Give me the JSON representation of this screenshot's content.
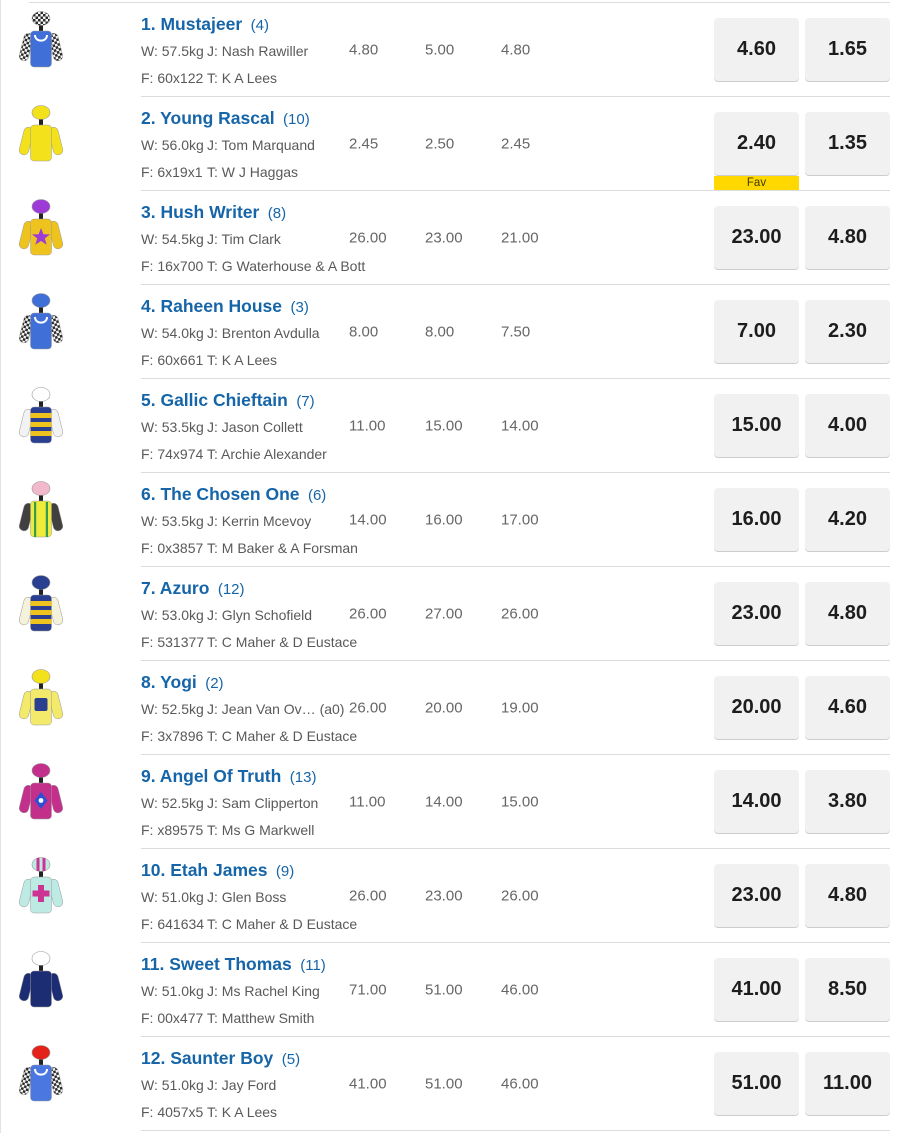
{
  "labels": {
    "fav": "Fav"
  },
  "colors": {
    "link_blue": "#1565a8",
    "detail_gray": "#595959",
    "flucs_gray": "#666666",
    "button_bg": "#f1f1f2",
    "fav_yellow": "#ffd800",
    "separator": "#dcdcdc"
  },
  "runners": [
    {
      "name": "1. Mustajeer",
      "barrier": "(4)",
      "weight": "W: 57.5kg",
      "jockey": "J: Nash Rawiller",
      "form": "F: 60x122",
      "trainer": "T: K A Lees",
      "odds_history": [
        "4.80",
        "5.00",
        "4.80"
      ],
      "win": "4.60",
      "place": "1.65",
      "fav": false,
      "silks": {
        "cap": "#ffffff",
        "cap_style": "checks",
        "body": "#3f6fd7",
        "sleeves": "checks",
        "overlay": "chain",
        "overlay_color": "#ffffff"
      }
    },
    {
      "name": "2. Young Rascal",
      "barrier": "(10)",
      "weight": "W: 56.0kg",
      "jockey": "J: Tom Marquand",
      "form": "F: 6x19x1",
      "trainer": "T: W J Haggas",
      "odds_history": [
        "2.45",
        "2.50",
        "2.45"
      ],
      "win": "2.40",
      "place": "1.35",
      "fav": true,
      "silks": {
        "cap": "#f3e11c",
        "cap_style": "solid",
        "body": "#f3e11c",
        "sleeves": "#f3e11c",
        "overlay": "none",
        "overlay_color": ""
      }
    },
    {
      "name": "3. Hush Writer",
      "barrier": "(8)",
      "weight": "W: 54.5kg",
      "jockey": "J: Tim Clark",
      "form": "F: 16x700",
      "trainer": "T: G Waterhouse & A Bott",
      "odds_history": [
        "26.00",
        "23.00",
        "21.00"
      ],
      "win": "23.00",
      "place": "4.80",
      "fav": false,
      "silks": {
        "cap": "#9d3bd6",
        "cap_style": "solid",
        "body": "#efc31d",
        "sleeves": "#efc31d",
        "overlay": "star",
        "overlay_color": "#9d3bd6"
      }
    },
    {
      "name": "4. Raheen House",
      "barrier": "(3)",
      "weight": "W: 54.0kg",
      "jockey": "J: Brenton Avdulla",
      "form": "F: 60x661",
      "trainer": "T: K A Lees",
      "odds_history": [
        "8.00",
        "8.00",
        "7.50"
      ],
      "win": "7.00",
      "place": "2.30",
      "fav": false,
      "silks": {
        "cap": "#3f6fd7",
        "cap_style": "solid",
        "body": "#3f6fd7",
        "sleeves": "checks",
        "overlay": "chain",
        "overlay_color": "#ffffff"
      }
    },
    {
      "name": "5. Gallic Chieftain",
      "barrier": "(7)",
      "weight": "W: 53.5kg",
      "jockey": "J: Jason Collett",
      "form": "F: 74x974",
      "trainer": "T: Archie Alexander",
      "odds_history": [
        "11.00",
        "15.00",
        "14.00"
      ],
      "win": "15.00",
      "place": "4.00",
      "fav": false,
      "silks": {
        "cap": "#ffffff",
        "cap_style": "solid",
        "body": "#2a3f8f",
        "sleeves": "#f2f2f2",
        "overlay": "hoops",
        "overlay_color": "#efc31d"
      }
    },
    {
      "name": "6. The Chosen One",
      "barrier": "(6)",
      "weight": "W: 53.5kg",
      "jockey": "J: Kerrin Mcevoy",
      "form": "F: 0x3857",
      "trainer": "T: M Baker & A Forsman",
      "odds_history": [
        "14.00",
        "16.00",
        "17.00"
      ],
      "win": "16.00",
      "place": "4.20",
      "fav": false,
      "silks": {
        "cap": "#f2b8cb",
        "cap_style": "solid",
        "body": "#f0ea3a",
        "sleeves": "#404040",
        "overlay": "vstripes",
        "overlay_color": "#2f9e4f"
      }
    },
    {
      "name": "7. Azuro",
      "barrier": "(12)",
      "weight": "W: 53.0kg",
      "jockey": "J: Glyn Schofield",
      "form": "F: 531377",
      "trainer": "T: C Maher & D Eustace",
      "odds_history": [
        "26.00",
        "27.00",
        "26.00"
      ],
      "win": "23.00",
      "place": "4.80",
      "fav": false,
      "silks": {
        "cap": "#2a3f8f",
        "cap_style": "solid",
        "body": "#2a3f8f",
        "sleeves": "#f5f2dc",
        "overlay": "hoops",
        "overlay_color": "#efc31d"
      }
    },
    {
      "name": "8. Yogi",
      "barrier": "(2)",
      "weight": "W: 52.5kg",
      "jockey": "J: Jean Van Ov… (a0)",
      "form": "F: 3x7896",
      "trainer": "T: C Maher & D Eustace",
      "odds_history": [
        "26.00",
        "20.00",
        "19.00"
      ],
      "win": "20.00",
      "place": "4.60",
      "fav": false,
      "silks": {
        "cap": "#f3e11c",
        "cap_style": "solid",
        "body": "#f3e96b",
        "sleeves": "#f3e96b",
        "overlay": "emblem",
        "overlay_color": "#2a3f8f"
      }
    },
    {
      "name": "9. Angel Of Truth",
      "barrier": "(13)",
      "weight": "W: 52.5kg",
      "jockey": "J: Sam Clipperton",
      "form": "F: x89575",
      "trainer": "T: Ms G Markwell",
      "odds_history": [
        "11.00",
        "14.00",
        "15.00"
      ],
      "win": "14.00",
      "place": "3.80",
      "fav": false,
      "silks": {
        "cap": "#c2308c",
        "cap_style": "solid",
        "body": "#c2308c",
        "sleeves": "#c2308c",
        "overlay": "diamond",
        "overlay_color": "#2d4fd4"
      }
    },
    {
      "name": "10. Etah James",
      "barrier": "(9)",
      "weight": "W: 51.0kg",
      "jockey": "J: Glen Boss",
      "form": "F: 641634",
      "trainer": "T: C Maher & D Eustace",
      "odds_history": [
        "26.00",
        "23.00",
        "26.00"
      ],
      "win": "23.00",
      "place": "4.80",
      "fav": false,
      "silks": {
        "cap": "#bdebe4",
        "cap_style": "stripes",
        "body": "#bdebe4",
        "sleeves": "#bdebe4",
        "overlay": "cross",
        "overlay_color": "#cc3392"
      }
    },
    {
      "name": "11. Sweet Thomas",
      "barrier": "(11)",
      "weight": "W: 51.0kg",
      "jockey": "J: Ms Rachel King",
      "form": "F: 00x477",
      "trainer": "T: Matthew Smith",
      "odds_history": [
        "71.00",
        "51.00",
        "46.00"
      ],
      "win": "41.00",
      "place": "8.50",
      "fav": false,
      "silks": {
        "cap": "#ffffff",
        "cap_style": "solid",
        "body": "#1c2d73",
        "sleeves": "#1c2d73",
        "overlay": "none",
        "overlay_color": ""
      }
    },
    {
      "name": "12. Saunter Boy",
      "barrier": "(5)",
      "weight": "W: 51.0kg",
      "jockey": "J: Jay Ford",
      "form": "F: 4057x5",
      "trainer": "T: K A Lees",
      "odds_history": [
        "41.00",
        "51.00",
        "46.00"
      ],
      "win": "51.00",
      "place": "11.00",
      "fav": false,
      "silks": {
        "cap": "#e32219",
        "cap_style": "solid",
        "body": "#4a78e0",
        "sleeves": "checks",
        "overlay": "chain",
        "overlay_color": "#ffffff"
      }
    }
  ]
}
